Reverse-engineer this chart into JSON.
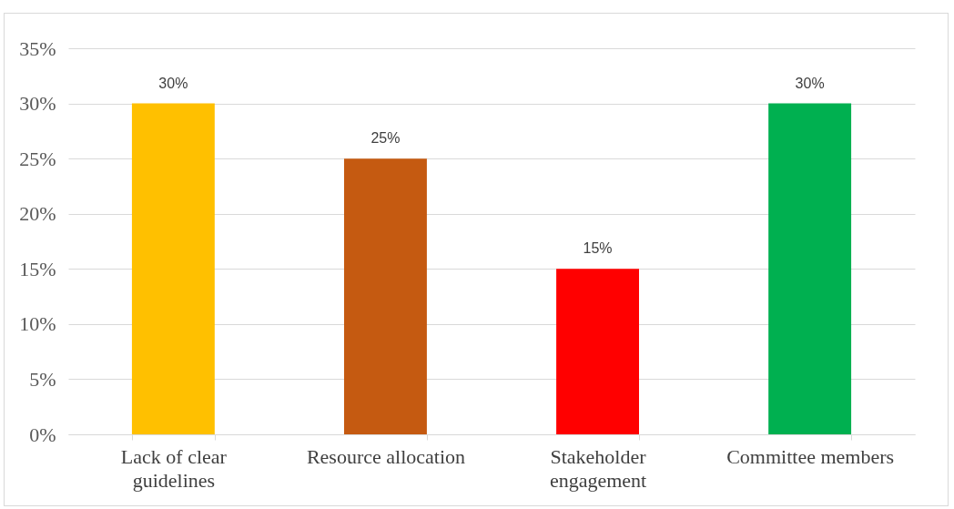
{
  "chart_data": {
    "type": "bar",
    "categories": [
      "Lack of clear guidelines",
      "Resource allocation",
      "Stakeholder engagement",
      "Committee members"
    ],
    "values": [
      30,
      25,
      15,
      30
    ],
    "colors": [
      "#ffc000",
      "#c55a11",
      "#ff0000",
      "#00b050"
    ],
    "value_labels": [
      "30%",
      "25%",
      "15%",
      "30%"
    ],
    "ylim": [
      0,
      35
    ],
    "yticks": [
      {
        "value": 0,
        "label": "0%"
      },
      {
        "value": 5,
        "label": "5%"
      },
      {
        "value": 10,
        "label": "10%"
      },
      {
        "value": 15,
        "label": "15%"
      },
      {
        "value": 20,
        "label": "20%"
      },
      {
        "value": 25,
        "label": "25%"
      },
      {
        "value": 30,
        "label": "30%"
      },
      {
        "value": 35,
        "label": "35%"
      }
    ],
    "grid": "y"
  }
}
